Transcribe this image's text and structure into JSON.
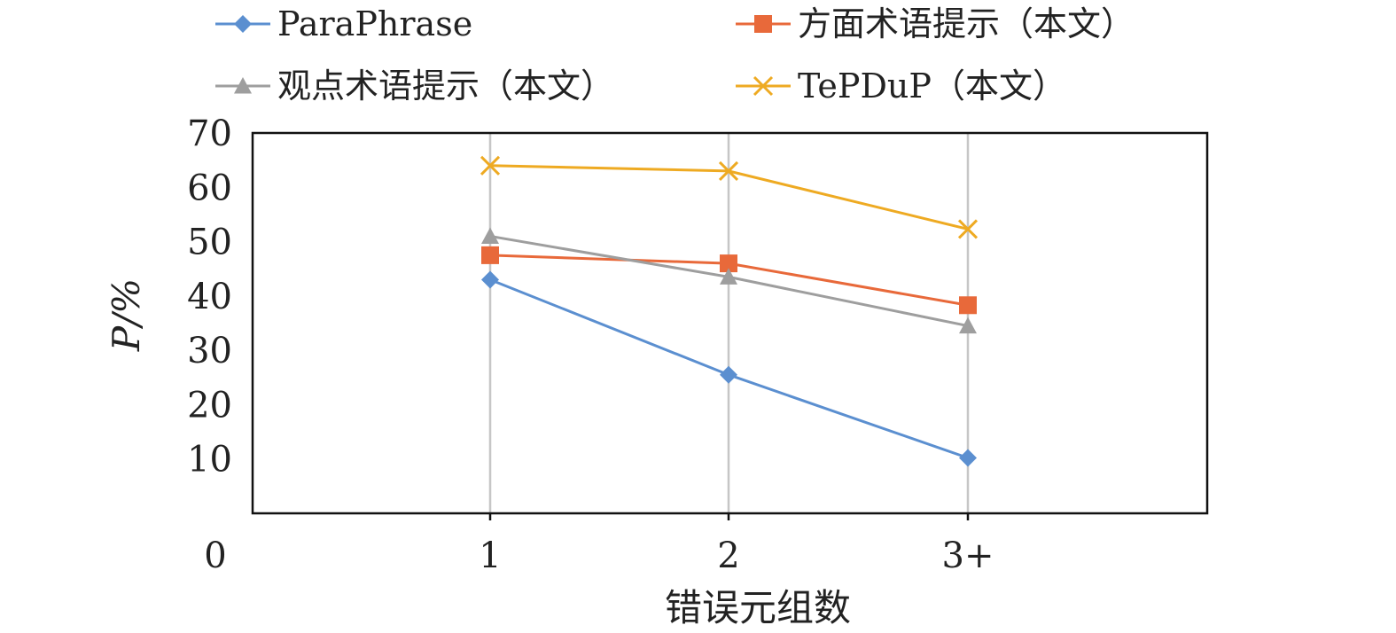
{
  "chart_data": {
    "type": "line",
    "categories": [
      "1",
      "2",
      "3+"
    ],
    "x_origin_label": "0",
    "xlabel": "错误元组数",
    "ylabel": "P/%",
    "ylim": [
      0,
      70
    ],
    "yticks": [
      10,
      20,
      30,
      40,
      50,
      60,
      70
    ],
    "grid": "vertical",
    "legend_position": "top",
    "series": [
      {
        "name": "ParaPhrase",
        "values": [
          43,
          25.5,
          10.2
        ],
        "color": "#5b8fd0",
        "marker": "diamond"
      },
      {
        "name": "方面术语提示（本文）",
        "values": [
          47.5,
          46,
          38.3
        ],
        "color": "#e8693a",
        "marker": "square"
      },
      {
        "name": "观点术语提示（本文）",
        "values": [
          51,
          43.5,
          34.5
        ],
        "color": "#9e9e9e",
        "marker": "triangle"
      },
      {
        "name": "TePDuP（本文）",
        "values": [
          64,
          63,
          52.3
        ],
        "color": "#eeaa22",
        "marker": "x"
      }
    ]
  }
}
